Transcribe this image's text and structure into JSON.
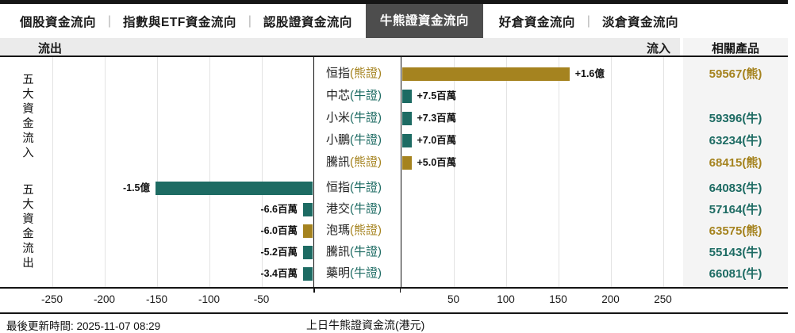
{
  "tabs": [
    {
      "label": "個股資金流向",
      "active": false
    },
    {
      "label": "指數與ETF資金流向",
      "active": false
    },
    {
      "label": "認股證資金流向",
      "active": false
    },
    {
      "label": "牛熊證資金流向",
      "active": true
    },
    {
      "label": "好倉資金流向",
      "active": false
    },
    {
      "label": "淡倉資金流向",
      "active": false
    }
  ],
  "header": {
    "outflow": "流出",
    "inflow": "流入",
    "related_products": "相關產品"
  },
  "group_labels": {
    "inflow": "五大資金流入",
    "outflow": "五大資金流出"
  },
  "footer": {
    "updated": "最後更新時間: 2025-11-07 08:29",
    "caption": "上日牛熊證資金流(港元)"
  },
  "colors": {
    "bull_teal": "#1d6b63",
    "bear_gold": "#a5831f",
    "active_tab_bg": "#4d4d4d"
  },
  "chart_data": {
    "type": "bar",
    "orientation": "horizontal-diverging",
    "unit": "百萬港元",
    "x_ticks": [
      -250,
      -200,
      -150,
      -100,
      -50,
      50,
      100,
      150,
      200,
      250
    ],
    "legend": {
      "bull": "牛證 (teal)",
      "bear": "熊證 (gold)"
    },
    "rows": [
      {
        "name": "恒指",
        "cert": "(熊證)",
        "type": "bear",
        "value_m": 160,
        "value_label": "+1.6億",
        "product": "59567(熊)"
      },
      {
        "name": "中芯",
        "cert": "(牛證)",
        "type": "bull",
        "value_m": 7.5,
        "value_label": "+7.5百萬",
        "product": ""
      },
      {
        "name": "小米",
        "cert": "(牛證)",
        "type": "bull",
        "value_m": 7.3,
        "value_label": "+7.3百萬",
        "product": "59396(牛)"
      },
      {
        "name": "小鵬",
        "cert": "(牛證)",
        "type": "bull",
        "value_m": 7.0,
        "value_label": "+7.0百萬",
        "product": "63234(牛)"
      },
      {
        "name": "騰訊",
        "cert": "(熊證)",
        "type": "bear",
        "value_m": 5.0,
        "value_label": "+5.0百萬",
        "product": "68415(熊)"
      },
      {
        "name": "恒指",
        "cert": "(牛證)",
        "type": "bull",
        "value_m": -150,
        "value_label": "-1.5億",
        "product": "64083(牛)"
      },
      {
        "name": "港交",
        "cert": "(牛證)",
        "type": "bull",
        "value_m": -6.6,
        "value_label": "-6.6百萬",
        "product": "57164(牛)"
      },
      {
        "name": "泡瑪",
        "cert": "(熊證)",
        "type": "bear",
        "value_m": -6.0,
        "value_label": "-6.0百萬",
        "product": "63575(熊)"
      },
      {
        "name": "騰訊",
        "cert": "(牛證)",
        "type": "bull",
        "value_m": -5.2,
        "value_label": "-5.2百萬",
        "product": "55143(牛)"
      },
      {
        "name": "藥明",
        "cert": "(牛證)",
        "type": "bull",
        "value_m": -3.4,
        "value_label": "-3.4百萬",
        "product": "66081(牛)"
      }
    ]
  }
}
